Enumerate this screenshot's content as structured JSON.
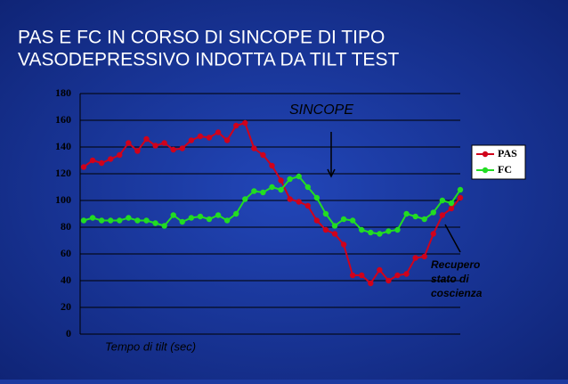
{
  "chart_data": {
    "type": "line",
    "title": [
      "PAS E FC IN CORSO DI SINCOPE DI TIPO",
      "VASODEPRESSIVO INDOTTA DA TILT TEST"
    ],
    "x_label": "Tempo  di tilt (sec)",
    "annotations": [
      "SINCOPE",
      [
        "Recupero",
        "stato di",
        "coscienza"
      ]
    ],
    "categories": [
      null,
      null,
      null,
      null,
      null,
      null,
      null,
      null,
      null,
      null,
      null,
      null,
      null,
      null,
      null,
      null,
      null,
      null,
      null,
      null,
      null,
      null,
      null,
      null,
      null,
      null,
      null,
      null,
      null,
      null,
      null,
      null,
      null,
      null,
      null,
      null,
      null,
      null,
      null,
      null,
      null,
      null,
      null
    ],
    "series": [
      {
        "name": "PAS",
        "color": "#d0021b",
        "values": [
          125,
          130,
          128,
          131,
          134,
          143,
          137,
          146,
          141,
          143,
          138,
          139,
          145,
          148,
          147,
          151,
          145,
          156,
          158,
          139,
          134,
          126,
          115,
          101,
          99,
          96,
          85,
          78,
          75,
          67,
          44,
          44,
          38,
          48,
          40,
          44,
          45,
          57,
          58,
          75,
          89,
          94,
          102
        ]
      },
      {
        "name": "FC",
        "color": "#22dd22",
        "values": [
          85,
          87,
          85,
          85,
          85,
          87,
          85,
          85,
          83,
          81,
          89,
          84,
          87,
          88,
          86,
          89,
          85,
          90,
          101,
          107,
          106,
          110,
          108,
          116,
          118,
          110,
          102,
          90,
          81,
          86,
          85,
          78,
          76,
          75,
          77,
          78,
          90,
          88,
          86,
          91,
          100,
          98,
          108
        ]
      }
    ],
    "ylim": [
      0,
      180
    ],
    "yticks": [
      0,
      20,
      40,
      60,
      80,
      100,
      120,
      140,
      160,
      180
    ],
    "grid": true,
    "legend": "right"
  }
}
